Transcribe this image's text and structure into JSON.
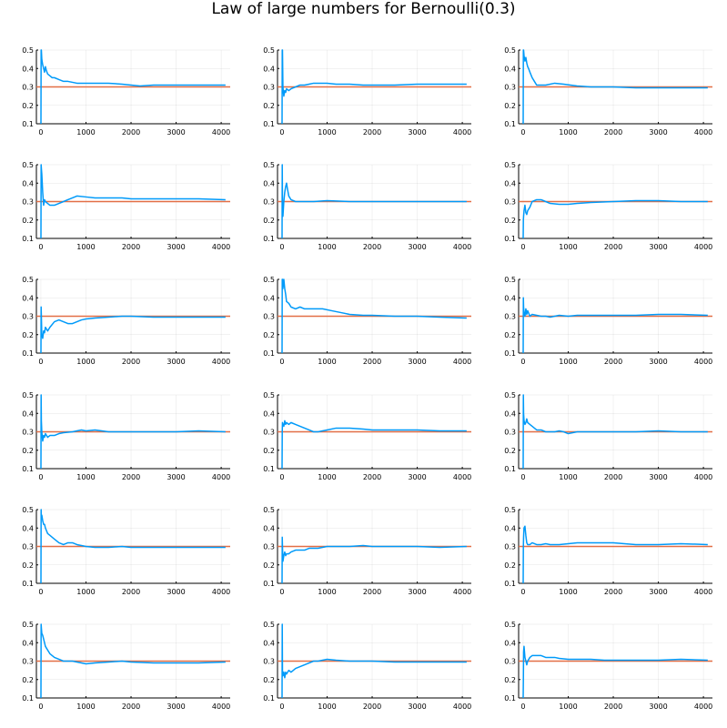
{
  "colors": {
    "series": "#009af9",
    "reference": "#e26f46"
  },
  "chart_data": {
    "type": "line",
    "title": "Law of large numbers for Bernoulli(0.3)",
    "layout": [
      6,
      3
    ],
    "xlim": [
      -100,
      4200
    ],
    "ylim": [
      0.1,
      0.5
    ],
    "xticks": [
      0,
      1000,
      2000,
      3000,
      4000
    ],
    "yticks": [
      0.1,
      0.2,
      0.3,
      0.4,
      0.5
    ],
    "reference_line": 0.3,
    "n": 4096,
    "panels": [
      {
        "x": [
          1,
          5,
          10,
          20,
          40,
          60,
          80,
          100,
          120,
          150,
          200,
          250,
          300,
          400,
          500,
          600,
          800,
          1000,
          1200,
          1500,
          1800,
          2000,
          2200,
          2500,
          3000,
          3500,
          4096
        ],
        "y": [
          0.0,
          0.6,
          0.5,
          0.45,
          0.42,
          0.4,
          0.38,
          0.41,
          0.39,
          0.37,
          0.36,
          0.35,
          0.35,
          0.34,
          0.33,
          0.33,
          0.32,
          0.32,
          0.32,
          0.32,
          0.315,
          0.31,
          0.305,
          0.31,
          0.31,
          0.31,
          0.31
        ]
      },
      {
        "x": [
          1,
          5,
          10,
          20,
          40,
          60,
          80,
          100,
          150,
          200,
          300,
          400,
          500,
          600,
          700,
          800,
          1000,
          1200,
          1500,
          1800,
          2000,
          2500,
          3000,
          3500,
          4096
        ],
        "y": [
          0.0,
          0.6,
          0.5,
          0.3,
          0.25,
          0.28,
          0.27,
          0.29,
          0.28,
          0.29,
          0.3,
          0.31,
          0.31,
          0.315,
          0.32,
          0.32,
          0.32,
          0.315,
          0.315,
          0.31,
          0.31,
          0.31,
          0.315,
          0.315,
          0.315
        ]
      },
      {
        "x": [
          1,
          5,
          10,
          20,
          40,
          60,
          80,
          100,
          120,
          150,
          200,
          250,
          300,
          400,
          500,
          700,
          900,
          1200,
          1500,
          2000,
          2500,
          3000,
          3500,
          4096
        ],
        "y": [
          0.0,
          0.8,
          0.5,
          0.47,
          0.44,
          0.46,
          0.43,
          0.41,
          0.4,
          0.38,
          0.35,
          0.33,
          0.31,
          0.31,
          0.31,
          0.32,
          0.315,
          0.305,
          0.3,
          0.3,
          0.295,
          0.295,
          0.295,
          0.295
        ]
      },
      {
        "x": [
          1,
          5,
          10,
          20,
          40,
          60,
          80,
          100,
          150,
          200,
          300,
          400,
          500,
          600,
          700,
          800,
          1000,
          1200,
          1500,
          1800,
          2000,
          2500,
          3000,
          3500,
          4096
        ],
        "y": [
          0.0,
          0.5,
          0.48,
          0.45,
          0.35,
          0.28,
          0.31,
          0.3,
          0.29,
          0.28,
          0.28,
          0.29,
          0.3,
          0.31,
          0.32,
          0.33,
          0.325,
          0.32,
          0.32,
          0.32,
          0.315,
          0.315,
          0.315,
          0.315,
          0.31
        ]
      },
      {
        "x": [
          1,
          5,
          10,
          20,
          40,
          60,
          80,
          100,
          120,
          150,
          200,
          300,
          400,
          500,
          700,
          1000,
          1500,
          2000,
          2500,
          3000,
          3500,
          4096
        ],
        "y": [
          0.0,
          0.5,
          0.3,
          0.22,
          0.3,
          0.35,
          0.38,
          0.4,
          0.37,
          0.33,
          0.31,
          0.3,
          0.3,
          0.3,
          0.3,
          0.305,
          0.3,
          0.3,
          0.3,
          0.3,
          0.3,
          0.3
        ]
      },
      {
        "x": [
          1,
          5,
          10,
          20,
          40,
          60,
          80,
          100,
          150,
          200,
          300,
          400,
          500,
          600,
          800,
          1000,
          1200,
          1500,
          2000,
          2500,
          3000,
          3500,
          4096
        ],
        "y": [
          0.0,
          0.2,
          0.22,
          0.25,
          0.28,
          0.24,
          0.23,
          0.25,
          0.27,
          0.3,
          0.31,
          0.31,
          0.3,
          0.29,
          0.285,
          0.285,
          0.29,
          0.295,
          0.3,
          0.305,
          0.305,
          0.3,
          0.3
        ]
      },
      {
        "x": [
          1,
          5,
          10,
          20,
          40,
          60,
          80,
          100,
          150,
          200,
          300,
          400,
          500,
          600,
          700,
          800,
          900,
          1000,
          1200,
          1500,
          1800,
          2000,
          2500,
          3000,
          3500,
          4096
        ],
        "y": [
          0.0,
          0.35,
          0.3,
          0.2,
          0.18,
          0.22,
          0.21,
          0.24,
          0.22,
          0.24,
          0.27,
          0.28,
          0.27,
          0.26,
          0.26,
          0.27,
          0.28,
          0.285,
          0.29,
          0.295,
          0.3,
          0.3,
          0.295,
          0.295,
          0.295,
          0.295
        ]
      },
      {
        "x": [
          1,
          5,
          10,
          20,
          40,
          60,
          80,
          100,
          150,
          200,
          300,
          400,
          500,
          700,
          900,
          1100,
          1300,
          1500,
          1800,
          2000,
          2500,
          3000,
          3500,
          4096
        ],
        "y": [
          0.0,
          0.6,
          0.5,
          0.45,
          0.5,
          0.45,
          0.42,
          0.38,
          0.37,
          0.35,
          0.34,
          0.35,
          0.34,
          0.34,
          0.34,
          0.33,
          0.32,
          0.31,
          0.305,
          0.305,
          0.3,
          0.3,
          0.295,
          0.29
        ]
      },
      {
        "x": [
          1,
          5,
          10,
          20,
          40,
          60,
          80,
          100,
          150,
          200,
          300,
          400,
          500,
          600,
          700,
          800,
          1000,
          1200,
          1500,
          2000,
          2500,
          3000,
          3500,
          4096
        ],
        "y": [
          0.0,
          0.4,
          0.35,
          0.32,
          0.3,
          0.34,
          0.31,
          0.33,
          0.3,
          0.31,
          0.305,
          0.3,
          0.3,
          0.295,
          0.3,
          0.305,
          0.3,
          0.305,
          0.305,
          0.305,
          0.305,
          0.31,
          0.31,
          0.305
        ]
      },
      {
        "x": [
          1,
          5,
          10,
          20,
          40,
          60,
          80,
          100,
          150,
          200,
          300,
          400,
          500,
          700,
          900,
          1000,
          1200,
          1500,
          1800,
          2000,
          2500,
          3000,
          3500,
          4096
        ],
        "y": [
          0.0,
          0.5,
          0.36,
          0.3,
          0.25,
          0.28,
          0.27,
          0.29,
          0.27,
          0.28,
          0.28,
          0.29,
          0.295,
          0.3,
          0.31,
          0.305,
          0.31,
          0.3,
          0.3,
          0.3,
          0.3,
          0.3,
          0.305,
          0.3
        ]
      },
      {
        "x": [
          1,
          5,
          10,
          20,
          40,
          60,
          80,
          100,
          150,
          200,
          300,
          400,
          500,
          600,
          700,
          800,
          1000,
          1200,
          1500,
          1800,
          2000,
          2500,
          3000,
          3500,
          4096
        ],
        "y": [
          0.0,
          0.3,
          0.35,
          0.34,
          0.33,
          0.36,
          0.34,
          0.35,
          0.34,
          0.35,
          0.34,
          0.33,
          0.32,
          0.31,
          0.3,
          0.3,
          0.31,
          0.32,
          0.32,
          0.315,
          0.31,
          0.31,
          0.31,
          0.305,
          0.305
        ]
      },
      {
        "x": [
          1,
          5,
          10,
          20,
          40,
          60,
          80,
          100,
          150,
          200,
          300,
          400,
          500,
          600,
          700,
          800,
          900,
          1000,
          1200,
          1500,
          2000,
          2500,
          3000,
          3500,
          4096
        ],
        "y": [
          0.0,
          0.5,
          0.4,
          0.36,
          0.34,
          0.35,
          0.37,
          0.35,
          0.34,
          0.33,
          0.31,
          0.31,
          0.3,
          0.3,
          0.3,
          0.305,
          0.3,
          0.29,
          0.3,
          0.3,
          0.3,
          0.3,
          0.305,
          0.3,
          0.3
        ]
      },
      {
        "x": [
          1,
          5,
          10,
          20,
          40,
          60,
          80,
          100,
          150,
          200,
          300,
          400,
          500,
          600,
          700,
          800,
          1000,
          1200,
          1500,
          1800,
          2000,
          2500,
          3000,
          3500,
          4096
        ],
        "y": [
          0.0,
          0.5,
          0.45,
          0.47,
          0.44,
          0.42,
          0.42,
          0.4,
          0.37,
          0.36,
          0.34,
          0.32,
          0.31,
          0.32,
          0.32,
          0.31,
          0.3,
          0.295,
          0.295,
          0.3,
          0.295,
          0.295,
          0.295,
          0.295,
          0.295
        ]
      },
      {
        "x": [
          1,
          5,
          10,
          20,
          40,
          60,
          80,
          100,
          150,
          200,
          300,
          400,
          500,
          600,
          800,
          1000,
          1200,
          1500,
          1800,
          2000,
          2500,
          3000,
          3500,
          4096
        ],
        "y": [
          0.0,
          0.35,
          0.3,
          0.22,
          0.25,
          0.27,
          0.25,
          0.26,
          0.26,
          0.27,
          0.28,
          0.28,
          0.28,
          0.29,
          0.29,
          0.3,
          0.3,
          0.3,
          0.305,
          0.3,
          0.3,
          0.3,
          0.295,
          0.3
        ]
      },
      {
        "x": [
          1,
          5,
          10,
          20,
          40,
          60,
          80,
          100,
          150,
          200,
          300,
          400,
          500,
          600,
          700,
          800,
          1000,
          1200,
          1500,
          1800,
          2000,
          2500,
          3000,
          3500,
          4096
        ],
        "y": [
          0.0,
          0.3,
          0.35,
          0.4,
          0.41,
          0.36,
          0.32,
          0.31,
          0.31,
          0.32,
          0.31,
          0.31,
          0.315,
          0.31,
          0.31,
          0.31,
          0.315,
          0.32,
          0.32,
          0.32,
          0.32,
          0.31,
          0.31,
          0.315,
          0.31
        ]
      },
      {
        "x": [
          1,
          5,
          10,
          20,
          40,
          60,
          80,
          100,
          150,
          200,
          300,
          400,
          500,
          600,
          700,
          800,
          1000,
          1200,
          1500,
          1800,
          2000,
          2500,
          3000,
          3500,
          4096
        ],
        "y": [
          0.0,
          0.5,
          0.48,
          0.45,
          0.44,
          0.42,
          0.4,
          0.38,
          0.36,
          0.34,
          0.32,
          0.31,
          0.3,
          0.3,
          0.3,
          0.295,
          0.285,
          0.29,
          0.295,
          0.3,
          0.295,
          0.29,
          0.29,
          0.29,
          0.295
        ]
      },
      {
        "x": [
          1,
          5,
          10,
          20,
          40,
          60,
          80,
          100,
          150,
          200,
          300,
          400,
          500,
          600,
          700,
          800,
          1000,
          1200,
          1500,
          1800,
          2000,
          2500,
          3000,
          3500,
          4096
        ],
        "y": [
          0.0,
          0.5,
          0.25,
          0.22,
          0.24,
          0.21,
          0.24,
          0.23,
          0.25,
          0.24,
          0.26,
          0.27,
          0.28,
          0.29,
          0.3,
          0.3,
          0.31,
          0.305,
          0.3,
          0.3,
          0.3,
          0.295,
          0.295,
          0.295,
          0.295
        ]
      },
      {
        "x": [
          1,
          5,
          10,
          20,
          40,
          60,
          80,
          100,
          150,
          200,
          300,
          400,
          500,
          600,
          700,
          800,
          1000,
          1200,
          1500,
          1800,
          2000,
          2500,
          3000,
          3500,
          4096
        ],
        "y": [
          0.0,
          0.2,
          0.35,
          0.38,
          0.32,
          0.3,
          0.28,
          0.3,
          0.32,
          0.33,
          0.33,
          0.33,
          0.32,
          0.32,
          0.32,
          0.315,
          0.31,
          0.31,
          0.31,
          0.305,
          0.305,
          0.305,
          0.305,
          0.31,
          0.305
        ]
      }
    ]
  }
}
